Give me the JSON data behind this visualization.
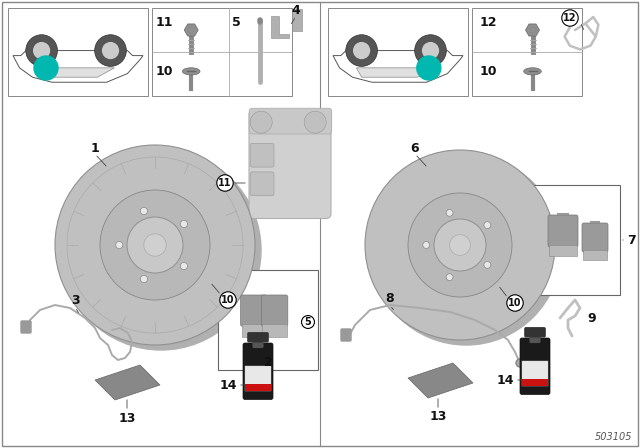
{
  "part_number": "503105",
  "bg": "#ffffff",
  "bc": "#444444",
  "teal": "#00b8b0",
  "gray_light": "#c8c8c8",
  "gray_mid": "#a0a0a0",
  "gray_dark": "#787878"
}
